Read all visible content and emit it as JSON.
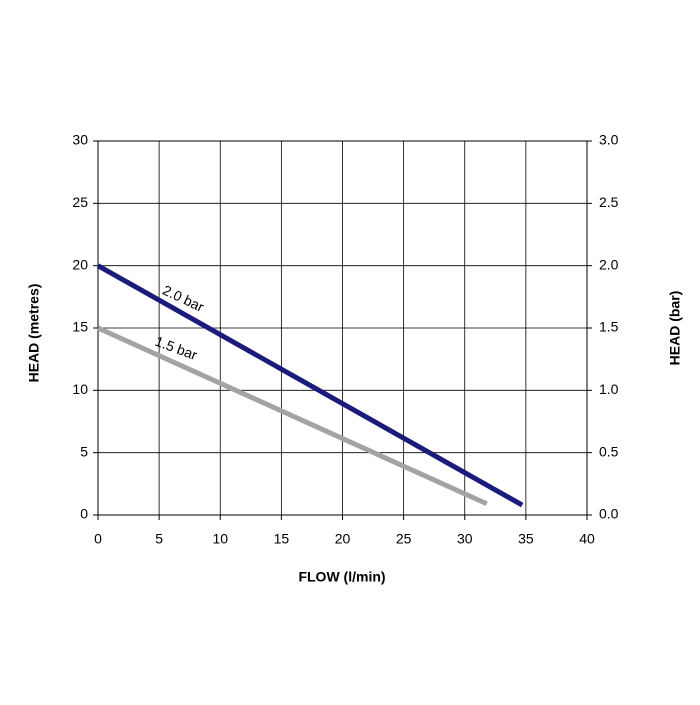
{
  "chart_data": {
    "type": "line",
    "xlabel": "FLOW (l/min)",
    "ylabel": "HEAD (metres)",
    "y2label": "HEAD (bar)",
    "xlim": [
      0,
      40
    ],
    "xticks": [
      0,
      5,
      10,
      15,
      20,
      25,
      30,
      35,
      40
    ],
    "ylim": [
      0,
      30
    ],
    "yticks": [
      0,
      5,
      10,
      15,
      20,
      25,
      30
    ],
    "y2lim": [
      0,
      3
    ],
    "y2ticks": [
      {
        "value": 0,
        "label": "0.0"
      },
      {
        "value": 0.5,
        "label": "0.5"
      },
      {
        "value": 1,
        "label": "1.0"
      },
      {
        "value": 1.5,
        "label": "1.5"
      },
      {
        "value": 2,
        "label": "2.0"
      },
      {
        "value": 2.5,
        "label": "2.5"
      },
      {
        "value": 3,
        "label": "3.0"
      }
    ],
    "grid": true,
    "series": [
      {
        "name": "2.0 bar",
        "color": "#1b1b7c",
        "x": [
          0,
          34.7
        ],
        "values": [
          20,
          0.8
        ]
      },
      {
        "name": "1.5 bar",
        "color": "#a3a3a3",
        "x": [
          0,
          31.8
        ],
        "values": [
          15,
          0.9
        ]
      }
    ]
  }
}
